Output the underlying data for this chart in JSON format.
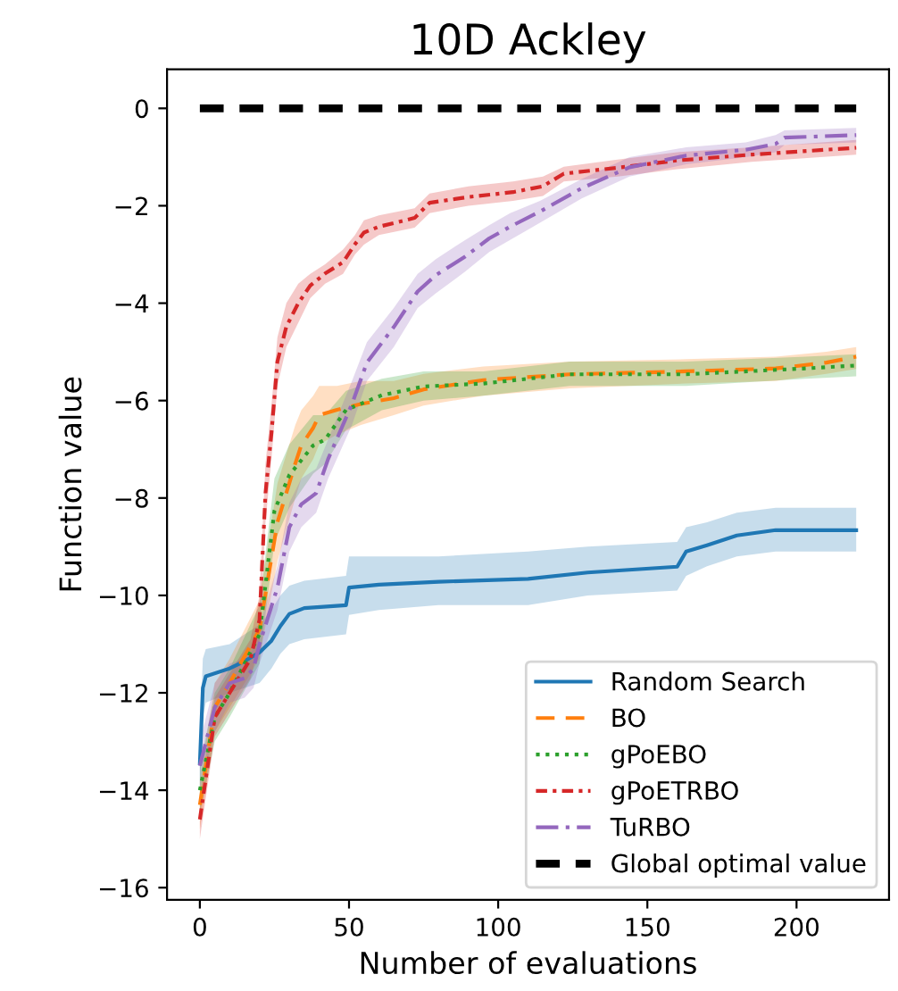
{
  "chart_data": {
    "type": "line",
    "title": "10D Ackley",
    "xlabel": "Number of evaluations",
    "ylabel": "Function value",
    "xlim": [
      -11,
      231
    ],
    "xticks": [
      0,
      50,
      100,
      150,
      200
    ],
    "ylim": [
      -16.25,
      0.8
    ],
    "yticks": [
      {
        "value": 0,
        "label": "0"
      },
      {
        "value": -2,
        "label": "−2"
      },
      {
        "value": -4,
        "label": "−4"
      },
      {
        "value": -6,
        "label": "−6"
      },
      {
        "value": -8,
        "label": "−8"
      },
      {
        "value": -10,
        "label": "−10"
      },
      {
        "value": -12,
        "label": "−12"
      },
      {
        "value": -14,
        "label": "−14"
      },
      {
        "value": -16,
        "label": "−16"
      }
    ],
    "grid": false,
    "legend": "bottom right",
    "marker": "none",
    "series": [
      {
        "name": "Random Search",
        "color": "#1f77b4",
        "line_style": "solid",
        "x": [
          0,
          1,
          2,
          10,
          15,
          20,
          24,
          27,
          30,
          35,
          49,
          50,
          60,
          80,
          110,
          130,
          160,
          163,
          170,
          180,
          193,
          220
        ],
        "values": [
          -13.45,
          -11.9,
          -11.66,
          -11.5,
          -11.35,
          -11.17,
          -10.93,
          -10.63,
          -10.38,
          -10.26,
          -10.2,
          -9.84,
          -9.78,
          -9.72,
          -9.66,
          -9.53,
          -9.41,
          -9.1,
          -8.97,
          -8.77,
          -8.66,
          -8.66
        ],
        "lower": [
          -14.0,
          -12.5,
          -12.2,
          -12.0,
          -11.9,
          -11.8,
          -11.5,
          -11.2,
          -11.0,
          -10.9,
          -10.8,
          -10.4,
          -10.3,
          -10.2,
          -10.2,
          -10.0,
          -9.9,
          -9.6,
          -9.4,
          -9.2,
          -9.1,
          -9.1
        ],
        "upper": [
          -12.9,
          -11.3,
          -11.1,
          -11.0,
          -10.8,
          -10.6,
          -10.3,
          -10.0,
          -9.8,
          -9.7,
          -9.6,
          -9.2,
          -9.2,
          -9.2,
          -9.1,
          -9.0,
          -8.9,
          -8.6,
          -8.5,
          -8.3,
          -8.2,
          -8.2
        ]
      },
      {
        "name": "BO",
        "color": "#ff7f0e",
        "line_style": "dashed",
        "x": [
          0,
          5,
          10,
          20,
          26,
          32,
          34,
          38,
          40,
          46,
          54,
          65,
          75,
          95,
          124,
          163,
          193,
          210,
          220
        ],
        "values": [
          -14.3,
          -12.3,
          -11.8,
          -10.7,
          -8.5,
          -7.29,
          -6.92,
          -6.56,
          -6.3,
          -6.19,
          -6.07,
          -5.95,
          -5.77,
          -5.58,
          -5.46,
          -5.4,
          -5.34,
          -5.22,
          -5.1
        ],
        "lower": [
          -14.8,
          -12.8,
          -12.3,
          -11.3,
          -9.3,
          -8.0,
          -7.6,
          -7.2,
          -6.9,
          -6.7,
          -6.5,
          -6.3,
          -6.1,
          -5.9,
          -5.75,
          -5.65,
          -5.6,
          -5.45,
          -5.35
        ],
        "upper": [
          -13.8,
          -11.8,
          -11.3,
          -10.1,
          -7.7,
          -6.5,
          -6.2,
          -5.9,
          -5.7,
          -5.7,
          -5.6,
          -5.6,
          -5.45,
          -5.3,
          -5.2,
          -5.15,
          -5.1,
          -5.0,
          -4.9
        ]
      },
      {
        "name": "gPoEBO",
        "color": "#2ca02c",
        "line_style": "dotted",
        "x": [
          0,
          5,
          10,
          20,
          25,
          30,
          38,
          42,
          49,
          61,
          75,
          95,
          124,
          163,
          203,
          220
        ],
        "values": [
          -14.0,
          -12.5,
          -12.0,
          -10.8,
          -8.26,
          -7.53,
          -6.92,
          -6.8,
          -6.19,
          -5.89,
          -5.71,
          -5.65,
          -5.46,
          -5.46,
          -5.34,
          -5.28
        ],
        "lower": [
          -14.5,
          -13.0,
          -12.5,
          -11.4,
          -8.9,
          -8.2,
          -7.5,
          -7.3,
          -6.6,
          -6.2,
          -6.0,
          -5.9,
          -5.7,
          -5.7,
          -5.55,
          -5.5
        ],
        "upper": [
          -13.5,
          -12.0,
          -11.5,
          -10.2,
          -7.6,
          -6.9,
          -6.3,
          -6.3,
          -5.8,
          -5.55,
          -5.4,
          -5.4,
          -5.2,
          -5.2,
          -5.1,
          -5.05
        ]
      },
      {
        "name": "gPoETRBO",
        "color": "#d62728",
        "line_style": "densedashdot",
        "x": [
          0,
          5,
          10,
          17,
          20,
          22,
          24,
          26,
          29,
          33,
          37,
          42,
          48,
          52,
          55,
          60,
          72,
          77,
          90,
          105,
          115,
          122,
          140,
          160,
          185,
          220
        ],
        "values": [
          -14.6,
          -12.5,
          -12.0,
          -11.3,
          -10.5,
          -7.9,
          -6.67,
          -5.2,
          -4.48,
          -4.0,
          -3.64,
          -3.39,
          -3.16,
          -2.79,
          -2.55,
          -2.43,
          -2.25,
          -1.94,
          -1.82,
          -1.72,
          -1.6,
          -1.34,
          -1.22,
          -1.07,
          -0.95,
          -0.81
        ],
        "lower": [
          -15.0,
          -12.9,
          -12.4,
          -11.7,
          -11.0,
          -8.5,
          -7.2,
          -5.7,
          -4.9,
          -4.4,
          -3.9,
          -3.6,
          -3.4,
          -3.0,
          -2.8,
          -2.6,
          -2.45,
          -2.15,
          -2.0,
          -1.9,
          -1.8,
          -1.5,
          -1.4,
          -1.25,
          -1.1,
          -0.95
        ],
        "upper": [
          -14.1,
          -12.1,
          -11.6,
          -10.9,
          -10.0,
          -7.3,
          -6.1,
          -4.7,
          -4.0,
          -3.6,
          -3.4,
          -3.2,
          -2.9,
          -2.6,
          -2.3,
          -2.2,
          -2.05,
          -1.75,
          -1.6,
          -1.5,
          -1.4,
          -1.2,
          -1.05,
          -0.9,
          -0.8,
          -0.65
        ]
      },
      {
        "name": "TuRBO",
        "color": "#9467bd",
        "line_style": "dashdot",
        "x": [
          0,
          5,
          10,
          15,
          18,
          20,
          26,
          30,
          34,
          39,
          43,
          51,
          56,
          65,
          73,
          79,
          89,
          97,
          104,
          114,
          128,
          144,
          163,
          183,
          193,
          196,
          220
        ],
        "values": [
          -13.5,
          -12.3,
          -11.8,
          -11.7,
          -11.5,
          -11.0,
          -9.84,
          -8.6,
          -8.13,
          -7.9,
          -7.2,
          -6.07,
          -5.22,
          -4.49,
          -3.76,
          -3.43,
          -3.04,
          -2.67,
          -2.43,
          -2.12,
          -1.64,
          -1.21,
          -0.97,
          -0.85,
          -0.73,
          -0.6,
          -0.55
        ],
        "lower": [
          -14.0,
          -12.8,
          -12.2,
          -12.1,
          -11.9,
          -11.4,
          -10.3,
          -9.1,
          -8.6,
          -8.3,
          -7.6,
          -6.5,
          -5.6,
          -4.9,
          -4.1,
          -3.8,
          -3.35,
          -2.95,
          -2.7,
          -2.35,
          -1.85,
          -1.4,
          -1.15,
          -1.0,
          -0.9,
          -0.75,
          -0.7
        ],
        "upper": [
          -13.0,
          -11.8,
          -11.4,
          -11.3,
          -11.1,
          -10.6,
          -9.4,
          -8.1,
          -7.6,
          -7.4,
          -6.8,
          -5.6,
          -4.8,
          -4.1,
          -3.4,
          -3.1,
          -2.7,
          -2.4,
          -2.15,
          -1.9,
          -1.45,
          -1.0,
          -0.8,
          -0.7,
          -0.55,
          -0.45,
          -0.4
        ]
      },
      {
        "name": "Global optimal value",
        "color": "#000000",
        "line_style": "boldDashed",
        "x": [
          0,
          220
        ],
        "values": [
          0,
          0
        ]
      }
    ]
  }
}
